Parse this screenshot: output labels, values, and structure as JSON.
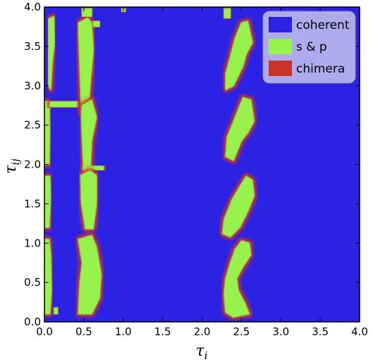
{
  "chart_data": {
    "type": "heatmap",
    "title": "",
    "xlabel": "τ",
    "xlabel_sub": "i",
    "ylabel": "τ",
    "ylabel_sub": "ij",
    "xlim": [
      0.0,
      4.0
    ],
    "ylim": [
      0.0,
      4.0
    ],
    "x_ticks": [
      "0.0",
      "0.5",
      "1.0",
      "1.5",
      "2.0",
      "2.5",
      "3.0",
      "3.5",
      "4.0"
    ],
    "y_ticks": [
      "0.0",
      "0.5",
      "1.0",
      "1.5",
      "2.0",
      "2.5",
      "3.0",
      "3.5",
      "4.0"
    ],
    "grid": false,
    "legend_position": "top-right",
    "categories": [
      "coherent",
      "s & p",
      "chimera"
    ],
    "colors": {
      "coherent": "#2b22e3",
      "s_and_p": "#97f24c",
      "chimera": "#c8342a"
    },
    "regions": [
      {
        "label": "s & p",
        "polygon": [
          [
            0.0,
            1.85
          ],
          [
            0.07,
            1.85
          ],
          [
            0.08,
            1.6
          ],
          [
            0.06,
            1.2
          ],
          [
            0.0,
            1.2
          ]
        ]
      },
      {
        "label": "s & p",
        "polygon": [
          [
            0.0,
            1.05
          ],
          [
            0.06,
            1.05
          ],
          [
            0.08,
            0.85
          ],
          [
            0.09,
            0.4
          ],
          [
            0.07,
            0.1
          ],
          [
            0.0,
            0.1
          ]
        ]
      },
      {
        "label": "s & p",
        "polygon": [
          [
            0.0,
            2.8
          ],
          [
            0.06,
            2.8
          ],
          [
            0.07,
            2.4
          ],
          [
            0.06,
            2.0
          ],
          [
            0.0,
            2.0
          ]
        ]
      },
      {
        "label": "s & p",
        "polygon": [
          [
            0.05,
            3.85
          ],
          [
            0.12,
            3.88
          ],
          [
            0.13,
            3.55
          ],
          [
            0.1,
            3.3
          ],
          [
            0.08,
            2.95
          ],
          [
            0.05,
            3.0
          ]
        ]
      },
      {
        "label": "s & p",
        "polygon": [
          [
            0.07,
            2.8
          ],
          [
            0.42,
            2.8
          ],
          [
            0.42,
            2.73
          ],
          [
            0.07,
            2.73
          ]
        ]
      },
      {
        "label": "s & p",
        "polygon": [
          [
            0.12,
            0.18
          ],
          [
            0.17,
            0.18
          ],
          [
            0.17,
            0.1
          ],
          [
            0.12,
            0.1
          ]
        ]
      },
      {
        "label": "s & p",
        "polygon": [
          [
            0.43,
            3.8
          ],
          [
            0.55,
            3.86
          ],
          [
            0.6,
            3.8
          ],
          [
            0.62,
            3.45
          ],
          [
            0.58,
            3.0
          ],
          [
            0.56,
            2.65
          ],
          [
            0.47,
            2.65
          ],
          [
            0.45,
            3.2
          ],
          [
            0.44,
            3.5
          ]
        ]
      },
      {
        "label": "s & p",
        "polygon": [
          [
            0.48,
            3.98
          ],
          [
            0.6,
            3.98
          ],
          [
            0.6,
            3.88
          ],
          [
            0.48,
            3.88
          ]
        ]
      },
      {
        "label": "s & p",
        "polygon": [
          [
            0.48,
            2.75
          ],
          [
            0.6,
            2.82
          ],
          [
            0.66,
            2.6
          ],
          [
            0.6,
            2.3
          ],
          [
            0.58,
            1.88
          ],
          [
            0.5,
            1.88
          ],
          [
            0.48,
            2.3
          ],
          [
            0.47,
            2.6
          ]
        ]
      },
      {
        "label": "s & p",
        "polygon": [
          [
            0.49,
            1.98
          ],
          [
            0.75,
            1.98
          ],
          [
            0.75,
            1.93
          ],
          [
            0.49,
            1.93
          ]
        ]
      },
      {
        "label": "s & p",
        "polygon": [
          [
            0.46,
            1.86
          ],
          [
            0.58,
            1.92
          ],
          [
            0.66,
            1.86
          ],
          [
            0.66,
            1.5
          ],
          [
            0.62,
            1.18
          ],
          [
            0.52,
            1.18
          ],
          [
            0.47,
            1.5
          ]
        ]
      },
      {
        "label": "s & p",
        "polygon": [
          [
            0.43,
            1.05
          ],
          [
            0.6,
            1.1
          ],
          [
            0.66,
            0.95
          ],
          [
            0.72,
            0.6
          ],
          [
            0.7,
            0.3
          ],
          [
            0.6,
            0.1
          ],
          [
            0.43,
            0.1
          ],
          [
            0.45,
            0.5
          ],
          [
            0.48,
            0.75
          ]
        ]
      },
      {
        "label": "s & p",
        "polygon": [
          [
            0.62,
            3.82
          ],
          [
            0.7,
            3.82
          ],
          [
            0.7,
            3.75
          ],
          [
            0.62,
            3.75
          ]
        ]
      },
      {
        "label": "s & p",
        "polygon": [
          [
            0.98,
            3.98
          ],
          [
            1.03,
            3.98
          ],
          [
            1.03,
            3.94
          ],
          [
            0.98,
            3.94
          ]
        ]
      },
      {
        "label": "s & p",
        "polygon": [
          [
            2.28,
            3.98
          ],
          [
            2.36,
            3.98
          ],
          [
            2.36,
            3.86
          ],
          [
            2.28,
            3.86
          ]
        ]
      },
      {
        "label": "s & p",
        "polygon": [
          [
            2.5,
            3.8
          ],
          [
            2.58,
            3.82
          ],
          [
            2.64,
            3.55
          ],
          [
            2.56,
            3.4
          ],
          [
            2.52,
            3.25
          ],
          [
            2.4,
            3.0
          ],
          [
            2.3,
            2.95
          ],
          [
            2.3,
            3.15
          ],
          [
            2.38,
            3.45
          ],
          [
            2.42,
            3.6
          ]
        ]
      },
      {
        "label": "s & p",
        "polygon": [
          [
            2.52,
            2.85
          ],
          [
            2.62,
            2.82
          ],
          [
            2.66,
            2.55
          ],
          [
            2.58,
            2.4
          ],
          [
            2.5,
            2.3
          ],
          [
            2.4,
            2.05
          ],
          [
            2.3,
            2.1
          ],
          [
            2.32,
            2.35
          ],
          [
            2.4,
            2.55
          ],
          [
            2.46,
            2.7
          ]
        ]
      },
      {
        "label": "s & p",
        "polygon": [
          [
            2.56,
            1.85
          ],
          [
            2.64,
            1.8
          ],
          [
            2.66,
            1.6
          ],
          [
            2.58,
            1.4
          ],
          [
            2.48,
            1.2
          ],
          [
            2.36,
            1.08
          ],
          [
            2.26,
            1.12
          ],
          [
            2.28,
            1.3
          ],
          [
            2.38,
            1.55
          ],
          [
            2.48,
            1.72
          ]
        ]
      },
      {
        "label": "s & p",
        "polygon": [
          [
            2.5,
            1.03
          ],
          [
            2.6,
            1.0
          ],
          [
            2.62,
            0.85
          ],
          [
            2.52,
            0.7
          ],
          [
            2.44,
            0.55
          ],
          [
            2.46,
            0.4
          ],
          [
            2.54,
            0.25
          ],
          [
            2.6,
            0.1
          ],
          [
            2.4,
            0.06
          ],
          [
            2.3,
            0.12
          ],
          [
            2.28,
            0.35
          ],
          [
            2.3,
            0.55
          ],
          [
            2.36,
            0.75
          ],
          [
            2.42,
            0.92
          ]
        ]
      }
    ]
  },
  "legend": {
    "items": [
      {
        "label": "coherent",
        "color": "#2b22e3"
      },
      {
        "label": "s & p",
        "color": "#97f24c"
      },
      {
        "label": "chimera",
        "color": "#c8342a"
      }
    ]
  }
}
